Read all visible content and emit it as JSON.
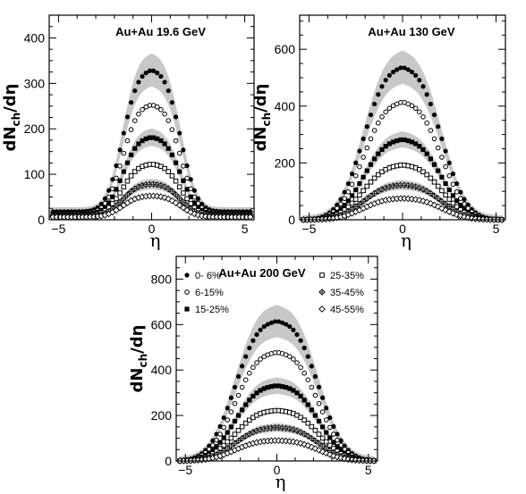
{
  "chart_data": [
    {
      "type": "scatter",
      "title": "Au+Au  19.6 GeV",
      "ylabel": "dN_ch/dη",
      "xlabel": "η",
      "xlim": [
        -5.5,
        5.5
      ],
      "ylim": [
        0,
        450
      ],
      "xticks": [
        -5,
        0,
        5
      ],
      "yticks": [
        0,
        100,
        200,
        300,
        400
      ],
      "series": [
        {
          "marker": "filled-circle",
          "plateau": 345,
          "half_width": 1.55,
          "sigma": 0.7,
          "tail": 18,
          "band": 38
        },
        {
          "marker": "open-circle",
          "plateau": 265,
          "half_width": 1.55,
          "sigma": 0.7,
          "tail": 14,
          "band": 0
        },
        {
          "marker": "filled-square",
          "plateau": 190,
          "half_width": 1.55,
          "sigma": 0.7,
          "tail": 12,
          "band": 20
        },
        {
          "marker": "open-square",
          "plateau": 128,
          "half_width": 1.55,
          "sigma": 0.7,
          "tail": 10,
          "band": 0
        },
        {
          "marker": "open-diamond-cross",
          "plateau": 82,
          "half_width": 1.55,
          "sigma": 0.7,
          "tail": 8,
          "band": 12
        },
        {
          "marker": "open-diamond",
          "plateau": 55,
          "half_width": 1.55,
          "sigma": 0.7,
          "tail": 6,
          "band": 0
        }
      ]
    },
    {
      "type": "scatter",
      "title": "Au+Au 130 GeV",
      "ylabel": "dN_ch/dη",
      "xlabel": "η",
      "xlim": [
        -5.5,
        5.5
      ],
      "ylim": [
        0,
        720
      ],
      "xticks": [
        -5,
        0,
        5
      ],
      "yticks": [
        0,
        200,
        400,
        600
      ],
      "series": [
        {
          "marker": "filled-circle",
          "plateau": 570,
          "half_width": 2.1,
          "sigma": 1.05,
          "tail": 0,
          "band": 62
        },
        {
          "marker": "open-circle",
          "plateau": 440,
          "half_width": 2.1,
          "sigma": 1.05,
          "tail": 0,
          "band": 0
        },
        {
          "marker": "filled-square",
          "plateau": 300,
          "half_width": 2.1,
          "sigma": 1.05,
          "tail": 0,
          "band": 30
        },
        {
          "marker": "open-square",
          "plateau": 205,
          "half_width": 2.1,
          "sigma": 1.05,
          "tail": 0,
          "band": 0
        },
        {
          "marker": "open-diamond-cross",
          "plateau": 130,
          "half_width": 2.1,
          "sigma": 1.05,
          "tail": 0,
          "band": 18
        },
        {
          "marker": "open-diamond",
          "plateau": 80,
          "half_width": 2.1,
          "sigma": 1.05,
          "tail": 0,
          "band": 0
        }
      ]
    },
    {
      "type": "scatter",
      "title": "Au+Au 200 GeV",
      "ylabel": "dN_ch/dη",
      "xlabel": "η",
      "xlim": [
        -5.5,
        5.5
      ],
      "ylim": [
        0,
        900
      ],
      "xticks": [
        -5,
        0,
        5
      ],
      "yticks": [
        0,
        200,
        400,
        600,
        800
      ],
      "series": [
        {
          "marker": "filled-circle",
          "name": "0- 6%",
          "plateau": 650,
          "half_width": 2.3,
          "sigma": 1.1,
          "tail": 0,
          "band": 75
        },
        {
          "marker": "open-circle",
          "name": "6-15%",
          "plateau": 505,
          "half_width": 2.3,
          "sigma": 1.1,
          "tail": 0,
          "band": 0
        },
        {
          "marker": "filled-square",
          "name": "15-25%",
          "plateau": 350,
          "half_width": 2.3,
          "sigma": 1.1,
          "tail": 0,
          "band": 38
        },
        {
          "marker": "open-square",
          "name": "25-35%",
          "plateau": 235,
          "half_width": 2.3,
          "sigma": 1.1,
          "tail": 0,
          "band": 0
        },
        {
          "marker": "open-diamond-cross",
          "name": "35-45%",
          "plateau": 155,
          "half_width": 2.3,
          "sigma": 1.1,
          "tail": 0,
          "band": 20
        },
        {
          "marker": "open-diamond",
          "name": "45-55%",
          "plateau": 95,
          "half_width": 2.3,
          "sigma": 1.1,
          "tail": 0,
          "band": 0
        }
      ]
    }
  ]
}
